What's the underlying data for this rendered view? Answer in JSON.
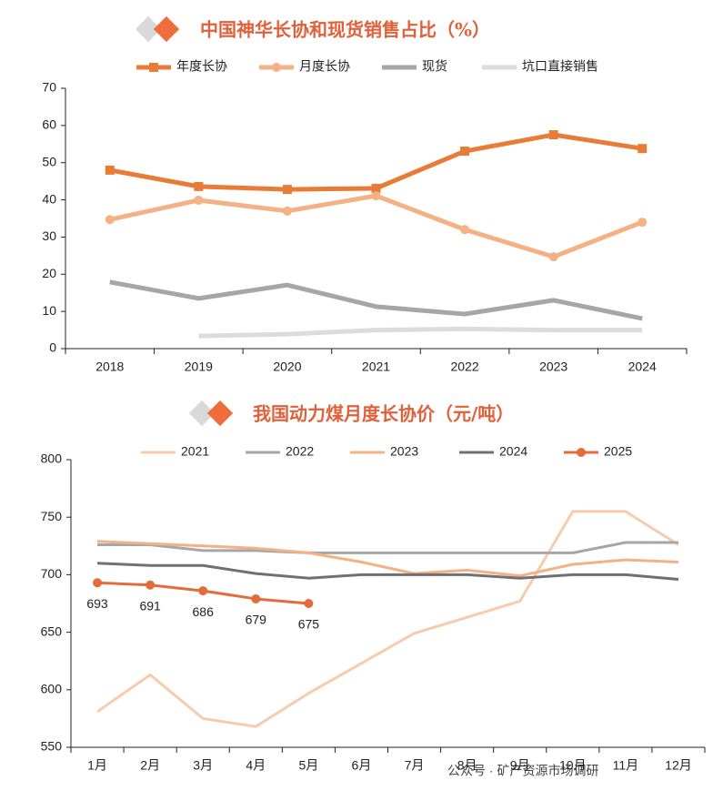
{
  "chart_data": [
    {
      "type": "line",
      "title": "中国神华长协和现货销售占比（%）",
      "categories": [
        "2018",
        "2019",
        "2020",
        "2021",
        "2022",
        "2023",
        "2024"
      ],
      "ylim": [
        0,
        70
      ],
      "yticks": [
        0,
        10,
        20,
        30,
        40,
        50,
        60,
        70
      ],
      "series": [
        {
          "name": "年度长协",
          "color": "#e87b36",
          "marker": "square",
          "values": [
            48,
            43.6,
            42.8,
            43.1,
            53.1,
            57.5,
            53.8
          ]
        },
        {
          "name": "月度长协",
          "color": "#f4b183",
          "marker": "circle",
          "values": [
            34.7,
            39.9,
            37,
            41.1,
            32,
            24.7,
            34
          ]
        },
        {
          "name": "现货",
          "color": "#a6a6a6",
          "values": [
            17.9,
            13.5,
            17.1,
            11.3,
            9.3,
            13,
            8.1
          ]
        },
        {
          "name": "坑口直接销售",
          "color": "#dcdcdc",
          "values": [
            null,
            3.4,
            3.9,
            5,
            5.3,
            5,
            5
          ]
        }
      ]
    },
    {
      "type": "line",
      "title": "我国动力煤月度长协价（元/吨）",
      "categories": [
        "1月",
        "2月",
        "3月",
        "4月",
        "5月",
        "6月",
        "7月",
        "8月",
        "9月",
        "10月",
        "11月",
        "12月"
      ],
      "ylim": [
        550,
        800
      ],
      "yticks": [
        550,
        600,
        650,
        700,
        750,
        800
      ],
      "annotation": "公众号 · 矿产资源市场调研",
      "series": [
        {
          "name": "2021",
          "color": "#f8cbad",
          "values": [
            581,
            613,
            575,
            568,
            597,
            623,
            649,
            663,
            677,
            755,
            755,
            726
          ]
        },
        {
          "name": "2022",
          "color": "#a6a6a6",
          "values": [
            726,
            726,
            721,
            721,
            719,
            719,
            719,
            719,
            719,
            719,
            728,
            728
          ]
        },
        {
          "name": "2023",
          "color": "#f4b183",
          "values": [
            729,
            727,
            725,
            723,
            719,
            711,
            701,
            704,
            699,
            709,
            713,
            711
          ]
        },
        {
          "name": "2024",
          "color": "#707070",
          "values": [
            710,
            708,
            708,
            701,
            697,
            700,
            700,
            700,
            697,
            700,
            700,
            696
          ]
        },
        {
          "name": "2025",
          "color": "#e46c3a",
          "marker": "circle",
          "data_labels": true,
          "values": [
            693,
            691,
            686,
            679,
            675,
            null,
            null,
            null,
            null,
            null,
            null,
            null
          ]
        }
      ]
    }
  ]
}
